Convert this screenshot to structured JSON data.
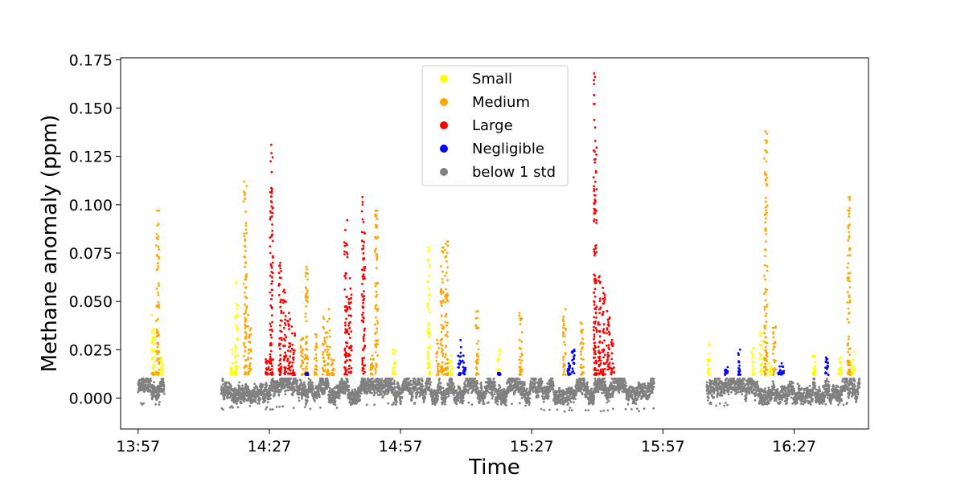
{
  "chart_data": {
    "type": "scatter",
    "title": "",
    "xlabel": "Time",
    "ylabel": "Methane anomaly (ppm)",
    "xlim": [
      "13:53",
      "16:44"
    ],
    "ylim": [
      -0.016,
      0.176
    ],
    "xticks": [
      "13:57",
      "14:27",
      "14:57",
      "15:27",
      "15:57",
      "16:27"
    ],
    "yticks": [
      "0.000",
      "0.025",
      "0.050",
      "0.075",
      "0.100",
      "0.125",
      "0.150",
      "0.175"
    ],
    "grid": false,
    "legend_position": "top-center",
    "series": [
      {
        "name": "Small",
        "color": "#ffff00",
        "bursts": [
          {
            "start": "14:00",
            "end": "14:01",
            "peak": 0.043
          },
          {
            "start": "14:01",
            "end": "14:02",
            "peak": 0.013
          },
          {
            "start": "14:02",
            "end": "14:03",
            "peak": 0.021
          },
          {
            "start": "14:18",
            "end": "14:19",
            "peak": 0.025
          },
          {
            "start": "14:19",
            "end": "14:20",
            "peak": 0.06
          },
          {
            "start": "14:55",
            "end": "14:56",
            "peak": 0.025
          },
          {
            "start": "15:03",
            "end": "15:04",
            "peak": 0.078
          },
          {
            "start": "15:08",
            "end": "15:09",
            "peak": 0.022
          },
          {
            "start": "15:19",
            "end": "15:20",
            "peak": 0.025
          },
          {
            "start": "16:07",
            "end": "16:08",
            "peak": 0.028
          },
          {
            "start": "16:17",
            "end": "16:18",
            "peak": 0.026
          },
          {
            "start": "16:19",
            "end": "16:20",
            "peak": 0.034
          },
          {
            "start": "16:21",
            "end": "16:22",
            "peak": 0.018
          },
          {
            "start": "16:31",
            "end": "16:32",
            "peak": 0.022
          },
          {
            "start": "16:37",
            "end": "16:38",
            "peak": 0.021
          },
          {
            "start": "16:40",
            "end": "16:41",
            "peak": 0.024
          }
        ]
      },
      {
        "name": "Medium",
        "color": "#ffa500",
        "bursts": [
          {
            "start": "14:00",
            "end": "14:01",
            "peak": 0.013
          },
          {
            "start": "14:01",
            "end": "14:02",
            "peak": 0.097
          },
          {
            "start": "14:21",
            "end": "14:22",
            "peak": 0.112
          },
          {
            "start": "14:22",
            "end": "14:23",
            "peak": 0.043
          },
          {
            "start": "14:34",
            "end": "14:35",
            "peak": 0.031
          },
          {
            "start": "14:35",
            "end": "14:36",
            "peak": 0.068
          },
          {
            "start": "14:37",
            "end": "14:38",
            "peak": 0.033
          },
          {
            "start": "14:39",
            "end": "14:40",
            "peak": 0.042
          },
          {
            "start": "14:40",
            "end": "14:41",
            "peak": 0.046
          },
          {
            "start": "14:41",
            "end": "14:42",
            "peak": 0.02
          },
          {
            "start": "14:50",
            "end": "14:51",
            "peak": 0.022
          },
          {
            "start": "14:51",
            "end": "14:52",
            "peak": 0.097
          },
          {
            "start": "15:05",
            "end": "15:06",
            "peak": 0.03
          },
          {
            "start": "15:06",
            "end": "15:07",
            "peak": 0.078
          },
          {
            "start": "15:07",
            "end": "15:08",
            "peak": 0.081
          },
          {
            "start": "15:14",
            "end": "15:15",
            "peak": 0.045
          },
          {
            "start": "15:24",
            "end": "15:25",
            "peak": 0.044
          },
          {
            "start": "15:34",
            "end": "15:35",
            "peak": 0.046
          },
          {
            "start": "15:38",
            "end": "15:39",
            "peak": 0.039
          },
          {
            "start": "16:20",
            "end": "16:21",
            "peak": 0.138
          },
          {
            "start": "16:22",
            "end": "16:23",
            "peak": 0.037
          },
          {
            "start": "16:39",
            "end": "16:40",
            "peak": 0.104
          }
        ]
      },
      {
        "name": "Large",
        "color": "#ff0000",
        "bursts": [
          {
            "start": "14:26",
            "end": "14:27",
            "peak": 0.02
          },
          {
            "start": "14:27",
            "end": "14:28",
            "peak": 0.131
          },
          {
            "start": "14:29",
            "end": "14:30",
            "peak": 0.07
          },
          {
            "start": "14:30",
            "end": "14:31",
            "peak": 0.056
          },
          {
            "start": "14:31",
            "end": "14:32",
            "peak": 0.044
          },
          {
            "start": "14:32",
            "end": "14:33",
            "peak": 0.037
          },
          {
            "start": "14:44",
            "end": "14:45",
            "peak": 0.092
          },
          {
            "start": "14:45",
            "end": "14:46",
            "peak": 0.062
          },
          {
            "start": "14:48",
            "end": "14:49",
            "peak": 0.104
          },
          {
            "start": "15:41",
            "end": "15:42",
            "peak": 0.168
          },
          {
            "start": "15:42",
            "end": "15:43",
            "peak": 0.063
          },
          {
            "start": "15:43",
            "end": "15:44",
            "peak": 0.057
          },
          {
            "start": "15:44",
            "end": "15:45",
            "peak": 0.045
          },
          {
            "start": "15:45",
            "end": "15:46",
            "peak": 0.03
          }
        ]
      },
      {
        "name": "Negligible",
        "color": "#0000ff",
        "bursts": [
          {
            "start": "14:35",
            "end": "14:36",
            "peak": 0.013
          },
          {
            "start": "15:10",
            "end": "15:11",
            "peak": 0.03
          },
          {
            "start": "15:11",
            "end": "15:12",
            "peak": 0.022
          },
          {
            "start": "15:19",
            "end": "15:20",
            "peak": 0.013
          },
          {
            "start": "15:35",
            "end": "15:36",
            "peak": 0.018
          },
          {
            "start": "15:36",
            "end": "15:37",
            "peak": 0.025
          },
          {
            "start": "16:11",
            "end": "16:12",
            "peak": 0.016
          },
          {
            "start": "16:14",
            "end": "16:15",
            "peak": 0.025
          },
          {
            "start": "16:23",
            "end": "16:25",
            "peak": 0.018
          },
          {
            "start": "16:34",
            "end": "16:35",
            "peak": 0.021
          }
        ]
      },
      {
        "name": "below 1 std",
        "color": "#808080",
        "ranges": [
          {
            "start": "13:57",
            "end": "14:03",
            "min": -0.004,
            "max": 0.01
          },
          {
            "start": "14:16",
            "end": "14:45",
            "min": -0.006,
            "max": 0.01
          },
          {
            "start": "14:45",
            "end": "15:28",
            "min": -0.004,
            "max": 0.01
          },
          {
            "start": "15:28",
            "end": "15:55",
            "min": -0.007,
            "max": 0.01
          },
          {
            "start": "16:07",
            "end": "16:42",
            "min": -0.004,
            "max": 0.01
          }
        ]
      }
    ]
  }
}
